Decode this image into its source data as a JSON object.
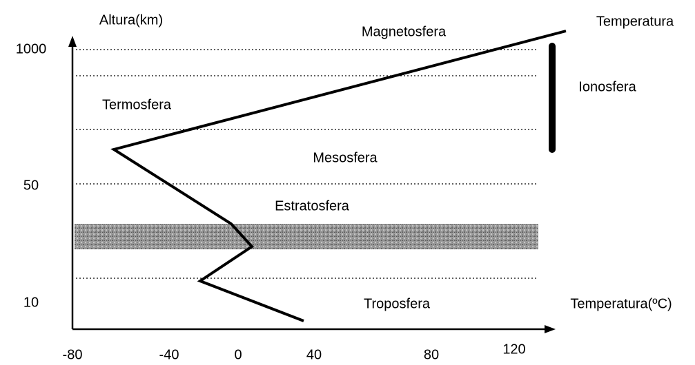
{
  "title": "Altura(km)",
  "x_axis": {
    "label": "Temperatura(ºC)",
    "ticks": [
      "-80",
      "-40",
      "0",
      "40",
      "80",
      "120"
    ]
  },
  "y_axis": {
    "ticks": [
      "1000",
      "50",
      "10"
    ]
  },
  "curve_label": "Temperatura",
  "layers": [
    "Magnetosfera",
    "Ionosfera",
    "Termosfera",
    "Mesosfera",
    "Estratosfera",
    "Troposfera"
  ]
}
